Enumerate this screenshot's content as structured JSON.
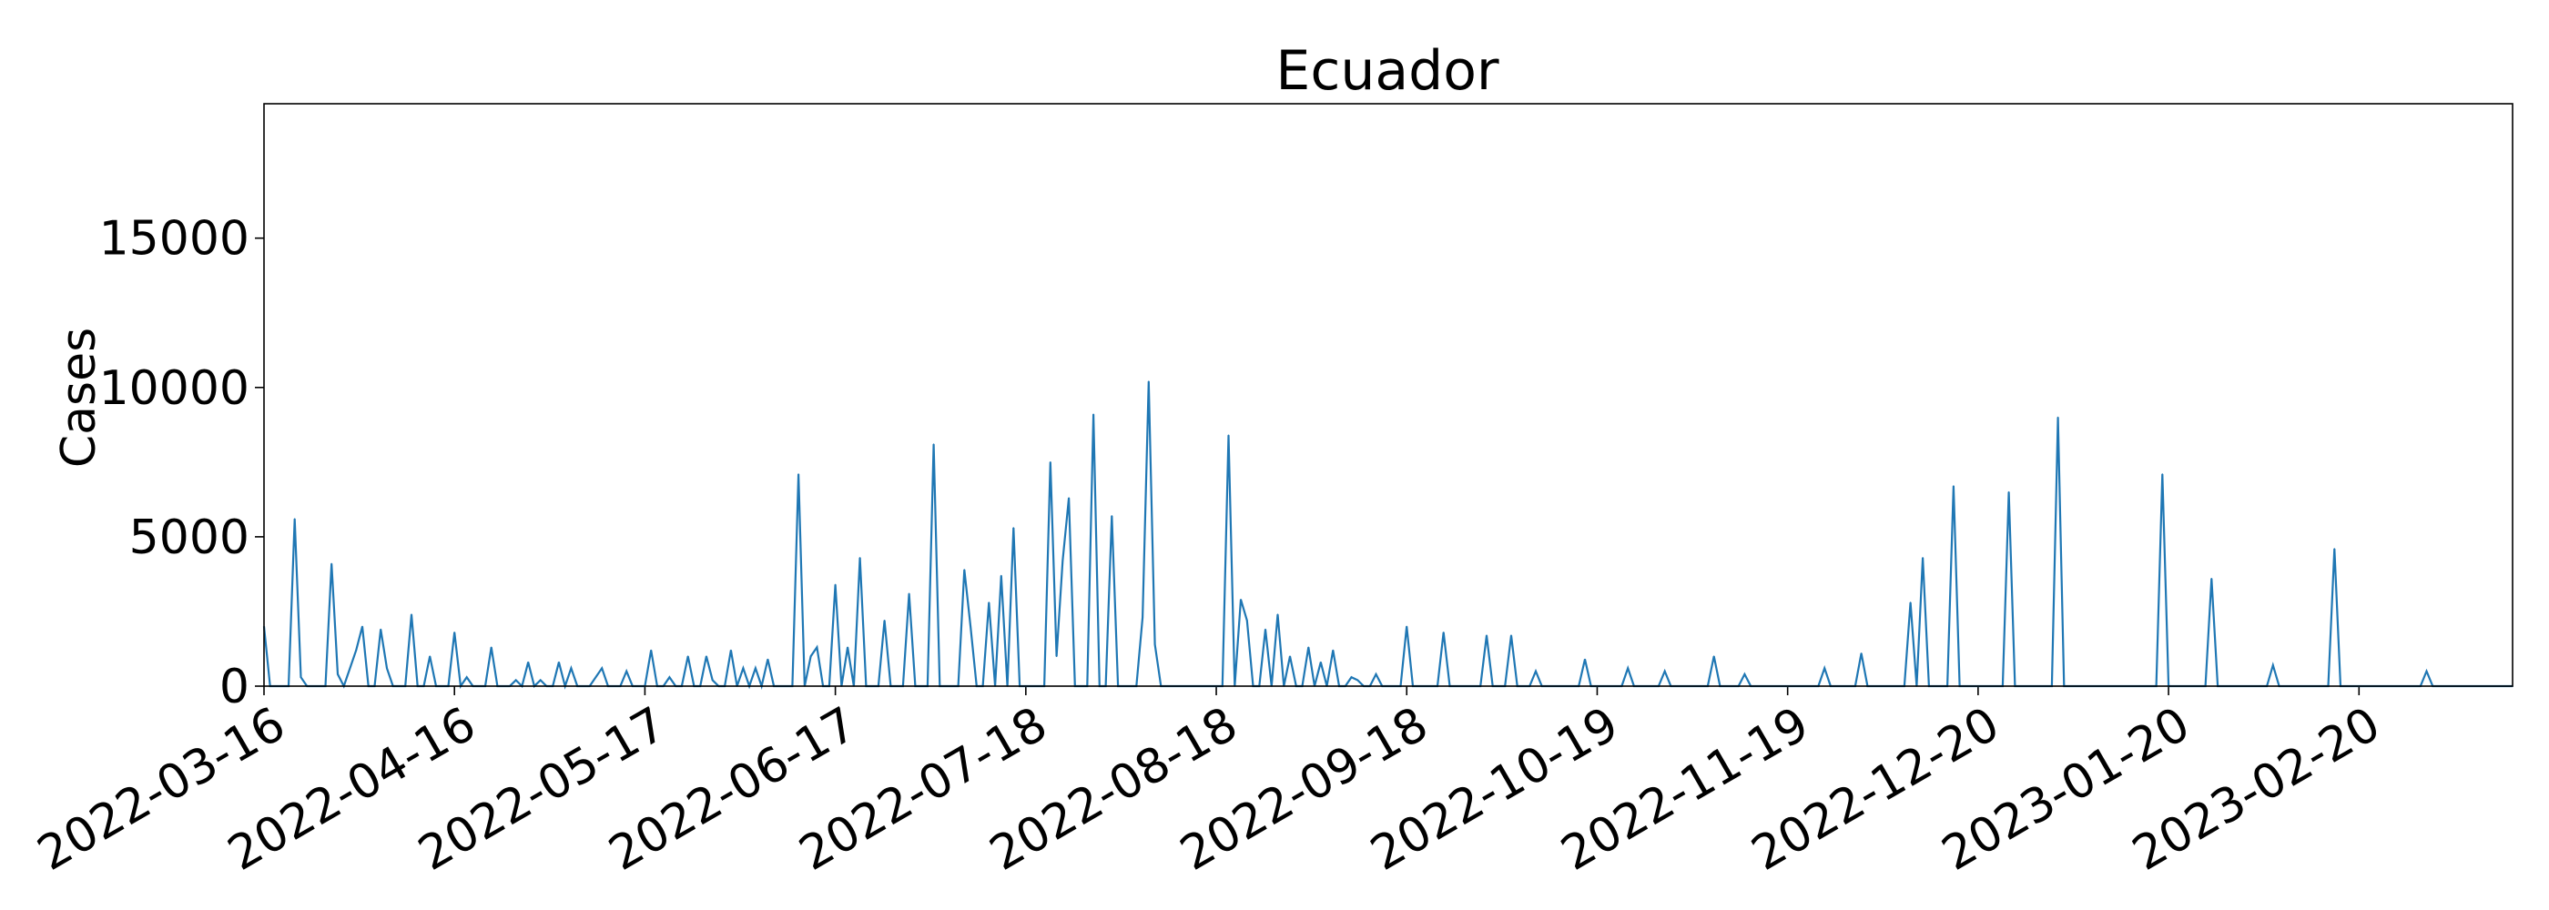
{
  "chart_data": {
    "type": "line",
    "title": "Ecuador",
    "xlabel": "",
    "ylabel": "Cases",
    "x_start": "2022-03-16",
    "x_end": "2023-03-17",
    "ylim": [
      0,
      19500
    ],
    "y_ticks": [
      0,
      5000,
      10000,
      15000
    ],
    "x_ticks": [
      "2022-03-16",
      "2022-04-16",
      "2022-05-17",
      "2022-06-17",
      "2022-07-18",
      "2022-08-18",
      "2022-09-18",
      "2022-10-19",
      "2022-11-19",
      "2022-12-20",
      "2023-01-20",
      "2023-02-20"
    ],
    "grid": false,
    "color": "#1f77b4",
    "series": [
      {
        "points": [
          [
            "2022-03-16",
            2000
          ],
          [
            "2022-03-17",
            0
          ],
          [
            "2022-03-20",
            0
          ],
          [
            "2022-03-21",
            5600
          ],
          [
            "2022-03-22",
            300
          ],
          [
            "2022-03-23",
            0
          ],
          [
            "2022-03-26",
            0
          ],
          [
            "2022-03-27",
            4100
          ],
          [
            "2022-03-28",
            400
          ],
          [
            "2022-03-29",
            0
          ],
          [
            "2022-03-31",
            1200
          ],
          [
            "2022-04-01",
            2000
          ],
          [
            "2022-04-02",
            0
          ],
          [
            "2022-04-03",
            0
          ],
          [
            "2022-04-04",
            1900
          ],
          [
            "2022-04-05",
            600
          ],
          [
            "2022-04-06",
            0
          ],
          [
            "2022-04-08",
            0
          ],
          [
            "2022-04-09",
            2400
          ],
          [
            "2022-04-10",
            0
          ],
          [
            "2022-04-11",
            0
          ],
          [
            "2022-04-12",
            1000
          ],
          [
            "2022-04-13",
            0
          ],
          [
            "2022-04-15",
            0
          ],
          [
            "2022-04-16",
            1800
          ],
          [
            "2022-04-17",
            0
          ],
          [
            "2022-04-18",
            300
          ],
          [
            "2022-04-19",
            0
          ],
          [
            "2022-04-21",
            0
          ],
          [
            "2022-04-22",
            1300
          ],
          [
            "2022-04-23",
            0
          ],
          [
            "2022-04-25",
            0
          ],
          [
            "2022-04-26",
            200
          ],
          [
            "2022-04-27",
            0
          ],
          [
            "2022-04-28",
            800
          ],
          [
            "2022-04-29",
            0
          ],
          [
            "2022-04-30",
            200
          ],
          [
            "2022-05-01",
            0
          ],
          [
            "2022-05-02",
            0
          ],
          [
            "2022-05-03",
            800
          ],
          [
            "2022-05-04",
            0
          ],
          [
            "2022-05-05",
            600
          ],
          [
            "2022-05-06",
            0
          ],
          [
            "2022-05-08",
            0
          ],
          [
            "2022-05-10",
            600
          ],
          [
            "2022-05-11",
            0
          ],
          [
            "2022-05-13",
            0
          ],
          [
            "2022-05-14",
            500
          ],
          [
            "2022-05-15",
            0
          ],
          [
            "2022-05-17",
            0
          ],
          [
            "2022-05-18",
            1200
          ],
          [
            "2022-05-19",
            0
          ],
          [
            "2022-05-20",
            0
          ],
          [
            "2022-05-21",
            300
          ],
          [
            "2022-05-22",
            0
          ],
          [
            "2022-05-23",
            0
          ],
          [
            "2022-05-24",
            1000
          ],
          [
            "2022-05-25",
            0
          ],
          [
            "2022-05-26",
            0
          ],
          [
            "2022-05-27",
            1000
          ],
          [
            "2022-05-28",
            200
          ],
          [
            "2022-05-29",
            0
          ],
          [
            "2022-05-30",
            0
          ],
          [
            "2022-05-31",
            1200
          ],
          [
            "2022-06-01",
            0
          ],
          [
            "2022-06-02",
            600
          ],
          [
            "2022-06-03",
            0
          ],
          [
            "2022-06-04",
            600
          ],
          [
            "2022-06-05",
            0
          ],
          [
            "2022-06-06",
            900
          ],
          [
            "2022-06-07",
            0
          ],
          [
            "2022-06-10",
            0
          ],
          [
            "2022-06-11",
            7100
          ],
          [
            "2022-06-12",
            0
          ],
          [
            "2022-06-13",
            1000
          ],
          [
            "2022-06-14",
            1300
          ],
          [
            "2022-06-15",
            0
          ],
          [
            "2022-06-16",
            0
          ],
          [
            "2022-06-17",
            3400
          ],
          [
            "2022-06-18",
            0
          ],
          [
            "2022-06-19",
            1300
          ],
          [
            "2022-06-20",
            0
          ],
          [
            "2022-06-21",
            4300
          ],
          [
            "2022-06-22",
            0
          ],
          [
            "2022-06-24",
            0
          ],
          [
            "2022-06-25",
            2200
          ],
          [
            "2022-06-26",
            0
          ],
          [
            "2022-06-28",
            0
          ],
          [
            "2022-06-29",
            3100
          ],
          [
            "2022-06-30",
            0
          ],
          [
            "2022-07-02",
            0
          ],
          [
            "2022-07-03",
            8100
          ],
          [
            "2022-07-04",
            0
          ],
          [
            "2022-07-07",
            0
          ],
          [
            "2022-07-08",
            3900
          ],
          [
            "2022-07-09",
            2000
          ],
          [
            "2022-07-10",
            0
          ],
          [
            "2022-07-11",
            0
          ],
          [
            "2022-07-12",
            2800
          ],
          [
            "2022-07-13",
            0
          ],
          [
            "2022-07-14",
            3700
          ],
          [
            "2022-07-15",
            0
          ],
          [
            "2022-07-16",
            5300
          ],
          [
            "2022-07-17",
            0
          ],
          [
            "2022-07-21",
            0
          ],
          [
            "2022-07-22",
            7500
          ],
          [
            "2022-07-23",
            1000
          ],
          [
            "2022-07-24",
            4200
          ],
          [
            "2022-07-25",
            6300
          ],
          [
            "2022-07-26",
            0
          ],
          [
            "2022-07-28",
            0
          ],
          [
            "2022-07-29",
            9100
          ],
          [
            "2022-07-30",
            0
          ],
          [
            "2022-07-31",
            0
          ],
          [
            "2022-08-01",
            5700
          ],
          [
            "2022-08-02",
            0
          ],
          [
            "2022-08-05",
            0
          ],
          [
            "2022-08-06",
            2300
          ],
          [
            "2022-08-07",
            10200
          ],
          [
            "2022-08-08",
            1400
          ],
          [
            "2022-08-09",
            0
          ],
          [
            "2022-08-19",
            0
          ],
          [
            "2022-08-20",
            8400
          ],
          [
            "2022-08-21",
            0
          ],
          [
            "2022-08-22",
            2900
          ],
          [
            "2022-08-23",
            2200
          ],
          [
            "2022-08-24",
            0
          ],
          [
            "2022-08-25",
            0
          ],
          [
            "2022-08-26",
            1900
          ],
          [
            "2022-08-27",
            0
          ],
          [
            "2022-08-28",
            2400
          ],
          [
            "2022-08-29",
            0
          ],
          [
            "2022-08-30",
            1000
          ],
          [
            "2022-08-31",
            0
          ],
          [
            "2022-09-01",
            0
          ],
          [
            "2022-09-02",
            1300
          ],
          [
            "2022-09-03",
            0
          ],
          [
            "2022-09-04",
            800
          ],
          [
            "2022-09-05",
            0
          ],
          [
            "2022-09-06",
            1200
          ],
          [
            "2022-09-07",
            0
          ],
          [
            "2022-09-08",
            0
          ],
          [
            "2022-09-09",
            300
          ],
          [
            "2022-09-10",
            200
          ],
          [
            "2022-09-11",
            0
          ],
          [
            "2022-09-12",
            0
          ],
          [
            "2022-09-13",
            400
          ],
          [
            "2022-09-14",
            0
          ],
          [
            "2022-09-17",
            0
          ],
          [
            "2022-09-18",
            2000
          ],
          [
            "2022-09-19",
            0
          ],
          [
            "2022-09-23",
            0
          ],
          [
            "2022-09-24",
            1800
          ],
          [
            "2022-09-25",
            0
          ],
          [
            "2022-09-30",
            0
          ],
          [
            "2022-10-01",
            1700
          ],
          [
            "2022-10-02",
            0
          ],
          [
            "2022-10-04",
            0
          ],
          [
            "2022-10-05",
            1700
          ],
          [
            "2022-10-06",
            0
          ],
          [
            "2022-10-08",
            0
          ],
          [
            "2022-10-09",
            500
          ],
          [
            "2022-10-10",
            0
          ],
          [
            "2022-10-16",
            0
          ],
          [
            "2022-10-17",
            900
          ],
          [
            "2022-10-18",
            0
          ],
          [
            "2022-10-23",
            0
          ],
          [
            "2022-10-24",
            600
          ],
          [
            "2022-10-25",
            0
          ],
          [
            "2022-10-29",
            0
          ],
          [
            "2022-10-30",
            500
          ],
          [
            "2022-10-31",
            0
          ],
          [
            "2022-11-06",
            0
          ],
          [
            "2022-11-07",
            1000
          ],
          [
            "2022-11-08",
            0
          ],
          [
            "2022-11-11",
            0
          ],
          [
            "2022-11-12",
            400
          ],
          [
            "2022-11-13",
            0
          ],
          [
            "2022-11-24",
            0
          ],
          [
            "2022-11-25",
            600
          ],
          [
            "2022-11-26",
            0
          ],
          [
            "2022-11-30",
            0
          ],
          [
            "2022-12-01",
            1100
          ],
          [
            "2022-12-02",
            0
          ],
          [
            "2022-12-08",
            0
          ],
          [
            "2022-12-09",
            2800
          ],
          [
            "2022-12-10",
            0
          ],
          [
            "2022-12-11",
            4300
          ],
          [
            "2022-12-12",
            0
          ],
          [
            "2022-12-15",
            0
          ],
          [
            "2022-12-16",
            6700
          ],
          [
            "2022-12-17",
            0
          ],
          [
            "2022-12-24",
            0
          ],
          [
            "2022-12-25",
            6500
          ],
          [
            "2022-12-26",
            0
          ],
          [
            "2023-01-01",
            0
          ],
          [
            "2023-01-02",
            9000
          ],
          [
            "2023-01-03",
            0
          ],
          [
            "2023-01-18",
            0
          ],
          [
            "2023-01-19",
            7100
          ],
          [
            "2023-01-20",
            0
          ],
          [
            "2023-01-26",
            0
          ],
          [
            "2023-01-27",
            3600
          ],
          [
            "2023-01-28",
            0
          ],
          [
            "2023-02-05",
            0
          ],
          [
            "2023-02-06",
            700
          ],
          [
            "2023-02-07",
            0
          ],
          [
            "2023-02-15",
            0
          ],
          [
            "2023-02-16",
            4600
          ],
          [
            "2023-02-17",
            0
          ],
          [
            "2023-03-02",
            0
          ],
          [
            "2023-03-03",
            500
          ],
          [
            "2023-03-04",
            0
          ],
          [
            "2023-03-17",
            0
          ]
        ]
      }
    ]
  }
}
